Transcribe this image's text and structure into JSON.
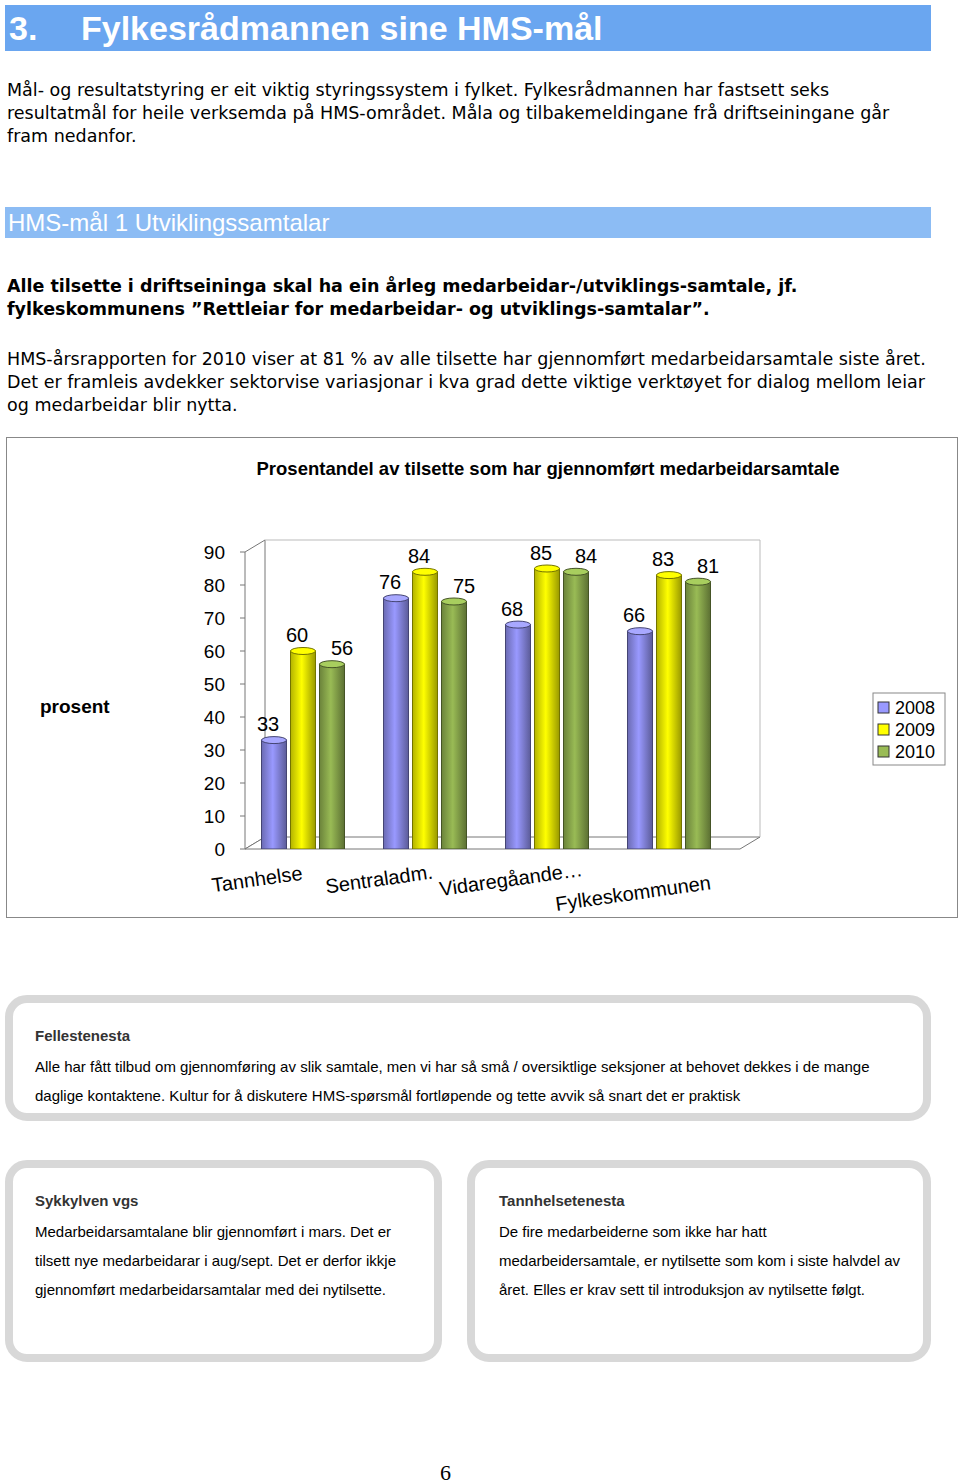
{
  "header": {
    "number": "3.",
    "title": "Fylkesrådmannen sine HMS-mål"
  },
  "intro": "Mål- og resultatstyring er eit viktig styringssystem i fylket. Fylkesrådmannen har fastsett seks resultatmål for heile verksemda på HMS-området. Måla og tilbakemeldingane frå driftseiningane går fram nedanfor.",
  "section": {
    "title": "HMS-mål 1 Utviklingssamtalar",
    "goal": "Alle tilsette i driftseininga skal ha ein årleg medarbeidar-/utviklings-samtale, jf. fylkeskommunens ”Rettleiar for medarbeidar- og utviklings-samtalar”.",
    "text": "HMS-årsrapporten for 2010 viser at 81 % av alle tilsette har gjennomført medarbeidarsamtale siste året. Det er framleis avdekker sektorvise variasjonar i kva grad dette viktige verktøyet for dialog mellom leiar og medarbeidar blir nytta."
  },
  "chart_data": {
    "type": "bar",
    "title": "Prosentandel av tilsette som har gjennomført medarbeidarsamtale",
    "y_label": "prosent",
    "categories": [
      "Tannhelse",
      "Sentraladm.",
      "Vidaregåande…",
      "Fylkeskommunen"
    ],
    "series": [
      {
        "name": "2008",
        "color": "#9999ff",
        "values": [
          33,
          76,
          68,
          66
        ]
      },
      {
        "name": "2009",
        "color": "#ffff00",
        "values": [
          60,
          84,
          85,
          83
        ]
      },
      {
        "name": "2010",
        "color": "#99bb55",
        "values": [
          56,
          75,
          84,
          81
        ]
      }
    ],
    "ylim": [
      0,
      90
    ],
    "yticks": [
      0,
      10,
      20,
      30,
      40,
      50,
      60,
      70,
      80,
      90
    ],
    "grid": false,
    "data_labels": true,
    "legend": "right"
  },
  "boxes": [
    {
      "title": "Fellestenesta",
      "text": "Alle har fått tilbud om gjennomføring av slik samtale, men vi har så små / oversiktlige seksjoner at behovet dekkes i de mange daglige kontaktene. Kultur for å diskutere HMS-spørsmål fortløpende og tette avvik så snart det er praktisk"
    },
    {
      "title": "Sykkylven vgs",
      "text": "Medarbeidarsamtalane blir gjennomført i mars. Det er tilsett nye medarbeidarar i aug/sept. Det er derfor ikkje gjennomført medarbeidarsamtalar med dei nytilsette."
    },
    {
      "title": "Tannhelsetenesta",
      "text": "De fire medarbeiderne som ikke har hatt medarbeidersamtale, er nytilsette som kom i siste halvdel av året. Elles er krav sett til introduksjon av nytilsette følgt."
    }
  ],
  "page_number": "6"
}
